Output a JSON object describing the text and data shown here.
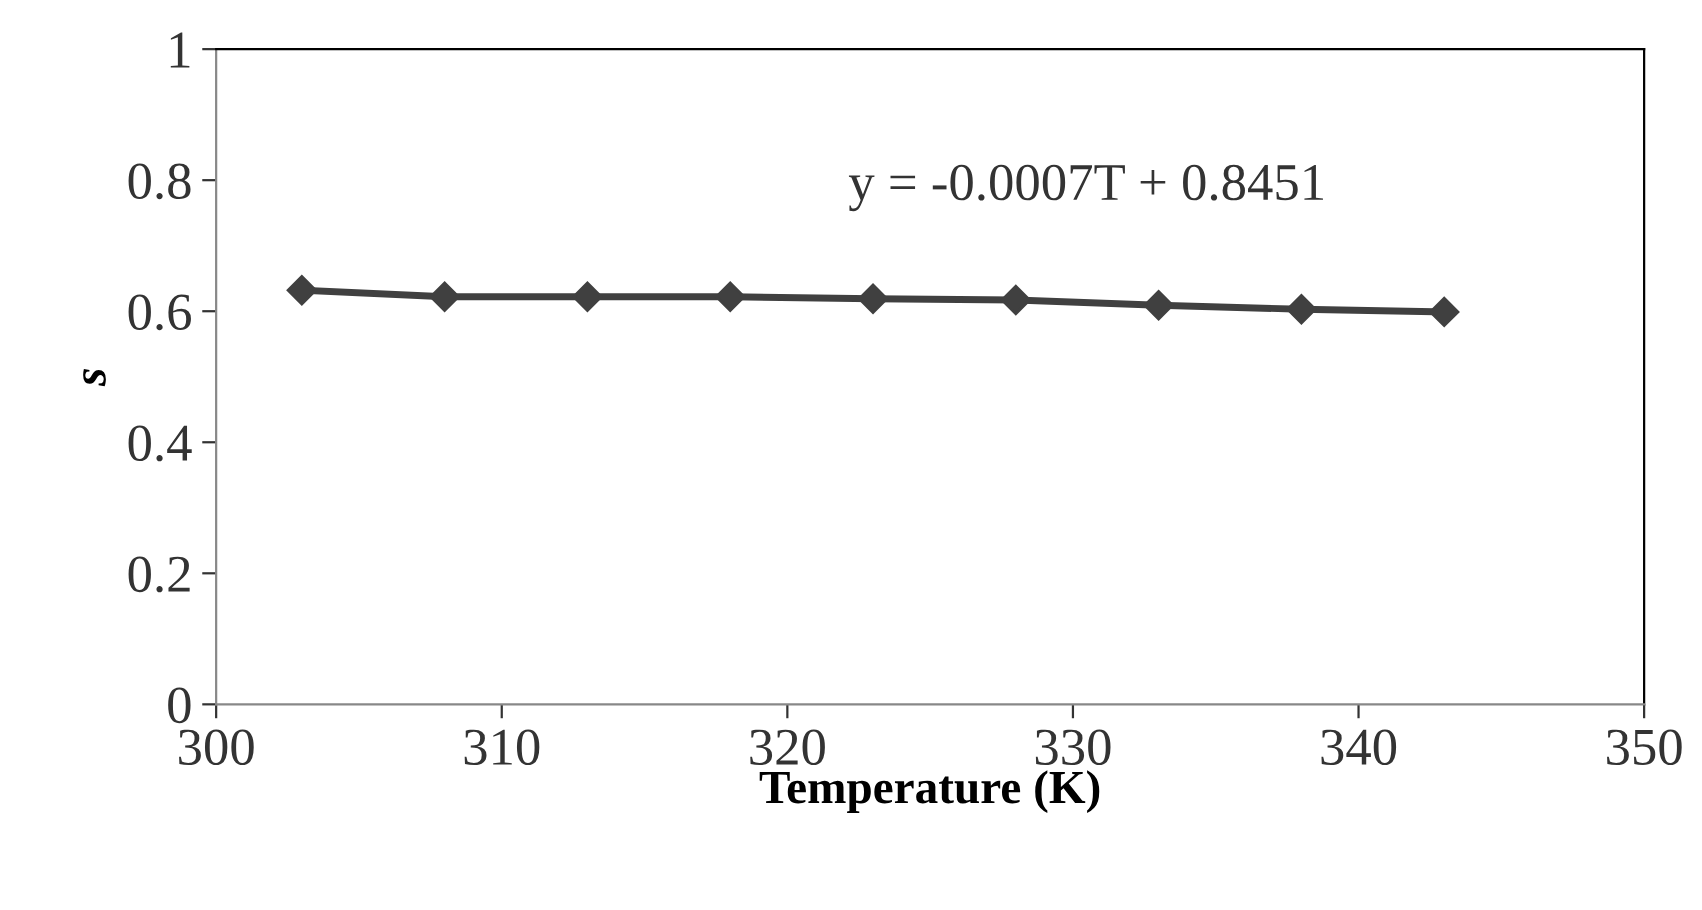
{
  "chart_data": {
    "type": "line",
    "xlabel": "Temperature (K)",
    "ylabel": "s",
    "x": [
      303,
      308,
      313,
      318,
      323,
      328,
      333,
      338,
      343
    ],
    "series": [
      {
        "color": "#404040",
        "values": [
          0.632,
          0.622,
          0.622,
          0.622,
          0.619,
          0.617,
          0.609,
          0.603,
          0.599
        ]
      }
    ],
    "xlim": [
      300,
      350
    ],
    "xticks": [
      300,
      310,
      320,
      330,
      340,
      350
    ],
    "ylim": [
      0,
      1
    ],
    "yticks": [
      0,
      0.2,
      0.4,
      0.6,
      0.8,
      1
    ],
    "marker": "diamond",
    "line_style": "solid",
    "grid": false,
    "legend": false,
    "annotations": [
      "y = -0.0007T + 0.8451"
    ]
  }
}
